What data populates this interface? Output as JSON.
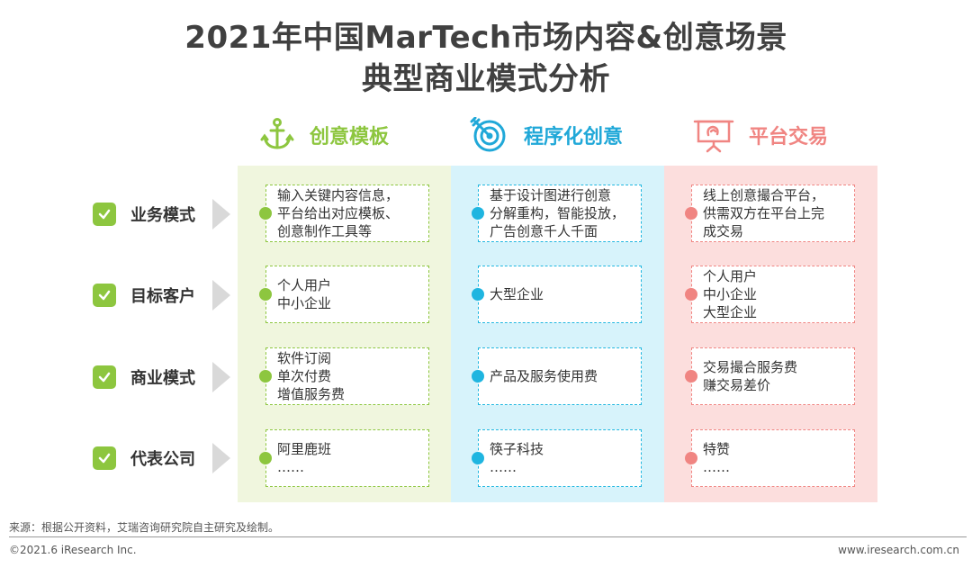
{
  "title": {
    "line1": "2021年中国MarTech市场内容&创意场景",
    "line2": "典型商业模式分析"
  },
  "columns": [
    {
      "label": "创意模板",
      "icon": "anchor-icon",
      "color": "#8dc63f"
    },
    {
      "label": "程序化创意",
      "icon": "target-icon",
      "color": "#20a8d8"
    },
    {
      "label": "平台交易",
      "icon": "presentation-board-icon",
      "color": "#f08582"
    }
  ],
  "rows": [
    {
      "label": "业务模式",
      "cells": [
        [
          "输入关键内容信息，",
          "平台给出对应模板、",
          "创意制作工具等"
        ],
        [
          "基于设计图进行创意",
          "分解重构，智能投放，",
          "广告创意千人千面"
        ],
        [
          "线上创意撮合平台，",
          "供需双方在平台上完",
          "成交易"
        ]
      ]
    },
    {
      "label": "目标客户",
      "cells": [
        [
          "个人用户",
          "中小企业"
        ],
        [
          "大型企业"
        ],
        [
          "个人用户",
          "中小企业",
          "大型企业"
        ]
      ]
    },
    {
      "label": "商业模式",
      "cells": [
        [
          "软件订阅",
          "单次付费",
          "增值服务费"
        ],
        [
          "产品及服务使用费"
        ],
        [
          "交易撮合服务费",
          "赚交易差价"
        ]
      ]
    },
    {
      "label": "代表公司",
      "cells": [
        [
          "阿里鹿班",
          "……"
        ],
        [
          "筷子科技",
          "……"
        ],
        [
          "特赞",
          "……"
        ]
      ]
    }
  ],
  "footer": {
    "source": "来源：根据公开资料，艾瑞咨询研究院自主研究及绘制。",
    "copyright": "©2021.6 iResearch Inc.",
    "website": "www.iresearch.com.cn"
  }
}
